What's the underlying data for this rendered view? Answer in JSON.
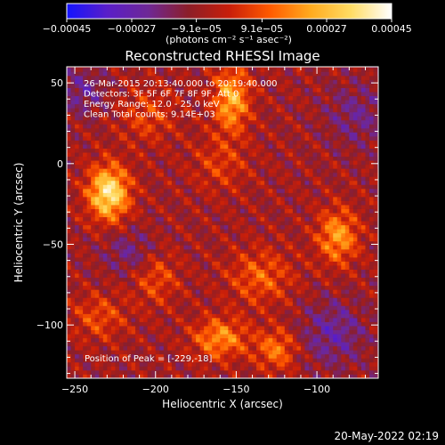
{
  "chart_data": {
    "type": "heatmap",
    "title": "Reconstructed RHESSI Image",
    "xlabel": "Heliocentric X (arcsec)",
    "ylabel": "Heliocentric Y (arcsec)",
    "xlim": [
      -255,
      -62
    ],
    "ylim": [
      -133,
      60
    ],
    "x_ticks": [
      -250,
      -200,
      -150,
      -100
    ],
    "x_tick_labels": [
      "−250",
      "−200",
      "−150",
      "−100"
    ],
    "y_ticks": [
      50,
      0,
      -50,
      -100
    ],
    "y_tick_labels": [
      "50",
      "0",
      "−50",
      "−100"
    ],
    "colorbar": {
      "range": [
        -0.00045,
        0.00045
      ],
      "ticks": [
        -0.00045,
        -0.00027,
        -9.1e-05,
        9.1e-05,
        0.00027,
        0.00045
      ],
      "tick_labels": [
        "−0.00045",
        "−0.00027",
        "−9.1e−05",
        "9.1e−05",
        "0.00027",
        "0.00045"
      ],
      "units_line": "(photons cm⁻² s⁻¹ asec⁻²)",
      "colors": [
        "#1414ff",
        "#5a1ec8",
        "#6e2896",
        "#8c1e28",
        "#c81e0a",
        "#ff5a00",
        "#ffaa1e",
        "#ffdc64",
        "#ffffff"
      ]
    },
    "annotations": [
      "26-Mar-2015 20:13:40.000 to 20:19:40.000",
      "Detectors: 3F 5F 6F 7F 8F 9F, Att 0",
      "Energy Range: 12.0 - 25.0 keV",
      "Clean    Total counts: 9.14E+03"
    ],
    "peak_label": "Position of Peak = [-229,-18]",
    "peak": [
      -229,
      -18
    ],
    "sources": [
      {
        "x": -229,
        "y": -18,
        "amp": 0.00045,
        "sx": 9,
        "sy": 12
      },
      {
        "x": -153,
        "y": 40,
        "amp": 0.00032,
        "sx": 8,
        "sy": 14
      },
      {
        "x": -87,
        "y": -45,
        "amp": 0.00028,
        "sx": 9,
        "sy": 12
      },
      {
        "x": -160,
        "y": -108,
        "amp": 0.00026,
        "sx": 12,
        "sy": 9
      },
      {
        "x": -125,
        "y": -115,
        "amp": 0.00022,
        "sx": 9,
        "sy": 9
      },
      {
        "x": -205,
        "y": 30,
        "amp": 0.00014,
        "sx": 12,
        "sy": 12
      },
      {
        "x": -135,
        "y": -70,
        "amp": 0.00018,
        "sx": 14,
        "sy": 12
      },
      {
        "x": -200,
        "y": -70,
        "amp": 0.00016,
        "sx": 10,
        "sy": 12
      },
      {
        "x": -235,
        "y": -95,
        "amp": 0.00015,
        "sx": 12,
        "sy": 10
      },
      {
        "x": -160,
        "y": 0,
        "amp": 0.00012,
        "sx": 12,
        "sy": 12
      },
      {
        "x": -75,
        "y": 30,
        "amp": -0.00012,
        "sx": 14,
        "sy": 14
      },
      {
        "x": -245,
        "y": 45,
        "amp": -0.00014,
        "sx": 10,
        "sy": 10
      },
      {
        "x": -90,
        "y": -105,
        "amp": -0.00016,
        "sx": 14,
        "sy": 14
      },
      {
        "x": -215,
        "y": -55,
        "amp": -0.00013,
        "sx": 12,
        "sy": 10
      }
    ]
  },
  "footer": {
    "timestamp": "20-May-2022 02:19"
  }
}
